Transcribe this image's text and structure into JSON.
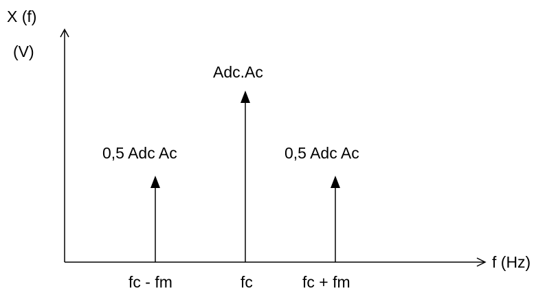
{
  "y_axis": {
    "label": "X (f)",
    "unit": "(V)"
  },
  "x_axis": {
    "label": "f (Hz)"
  },
  "lines": [
    {
      "label": "0,5 Adc Ac",
      "x_label": "fc - fm",
      "relative_amplitude": 0.5
    },
    {
      "label": "Adc.Ac",
      "x_label": "fc",
      "relative_amplitude": 1.0
    },
    {
      "label": "0,5 Adc Ac",
      "x_label": "fc + fm",
      "relative_amplitude": 0.5
    }
  ],
  "colors": {
    "stroke": "#000000",
    "background": "#ffffff"
  }
}
